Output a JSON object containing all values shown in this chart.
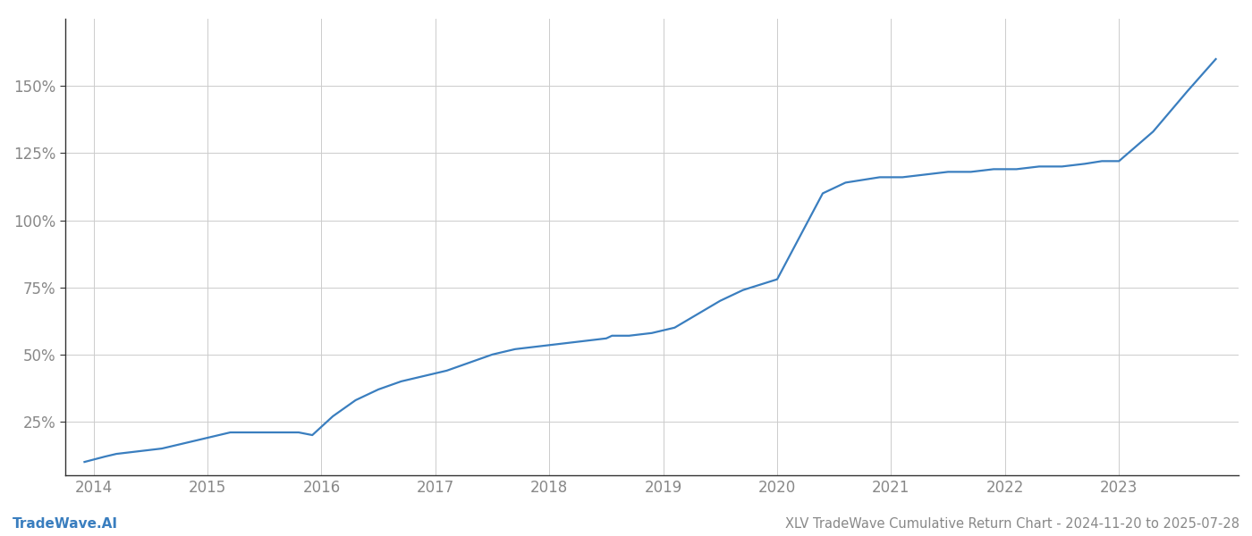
{
  "title": "XLV TradeWave Cumulative Return Chart - 2024-11-20 to 2025-07-28",
  "watermark": "TradeWave.AI",
  "line_color": "#3a7ebf",
  "background_color": "#ffffff",
  "grid_color": "#cccccc",
  "text_color": "#888888",
  "spine_color": "#333333",
  "x_years": [
    2014,
    2015,
    2016,
    2017,
    2018,
    2019,
    2020,
    2021,
    2022,
    2023
  ],
  "x_values": [
    2013.92,
    2014.1,
    2014.2,
    2014.4,
    2014.6,
    2014.8,
    2015.0,
    2015.2,
    2015.4,
    2015.6,
    2015.8,
    2015.92,
    2016.1,
    2016.3,
    2016.5,
    2016.7,
    2016.9,
    2017.1,
    2017.3,
    2017.5,
    2017.7,
    2017.9,
    2018.1,
    2018.3,
    2018.5,
    2018.55,
    2018.7,
    2018.9,
    2019.1,
    2019.3,
    2019.5,
    2019.7,
    2019.85,
    2020.0,
    2020.15,
    2020.4,
    2020.6,
    2020.75,
    2020.9,
    2021.1,
    2021.3,
    2021.5,
    2021.7,
    2021.9,
    2022.1,
    2022.3,
    2022.5,
    2022.7,
    2022.85,
    2023.0,
    2023.3,
    2023.6,
    2023.85
  ],
  "y_values": [
    10,
    12,
    13,
    14,
    15,
    17,
    19,
    21,
    21,
    21,
    21,
    20,
    27,
    33,
    37,
    40,
    42,
    44,
    47,
    50,
    52,
    53,
    54,
    55,
    56,
    57,
    57,
    58,
    60,
    65,
    70,
    74,
    76,
    78,
    90,
    110,
    114,
    115,
    116,
    116,
    117,
    118,
    118,
    119,
    119,
    120,
    120,
    121,
    122,
    122,
    133,
    148,
    160
  ],
  "yticks": [
    25,
    50,
    75,
    100,
    125,
    150
  ],
  "ylim": [
    5,
    175
  ],
  "xlim": [
    2013.75,
    2024.05
  ],
  "title_fontsize": 10.5,
  "watermark_fontsize": 11,
  "tick_fontsize": 12,
  "line_width": 1.6
}
